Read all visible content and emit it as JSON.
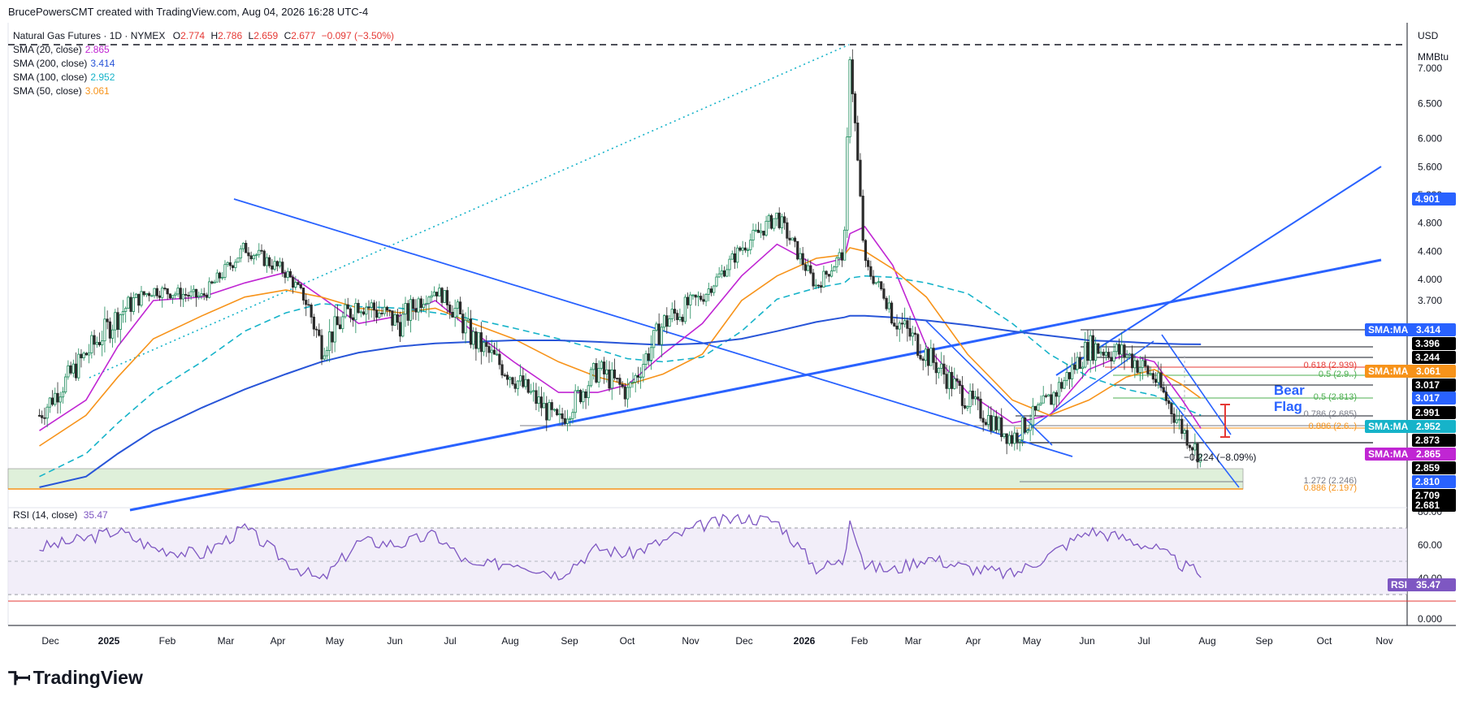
{
  "header": {
    "attribution": "BrucePowersCMT created with TradingView.com, Aug 04, 2026 16:28 UTC-4"
  },
  "symbol": {
    "name": "Natural Gas Futures · 1D · NYMEX",
    "open_label": "O",
    "open": "2.774",
    "high_label": "H",
    "high": "2.786",
    "low_label": "L",
    "low": "2.659",
    "close_label": "C",
    "close": "2.677",
    "change": "−0.097 (−3.50%)"
  },
  "indicators": [
    {
      "label": "SMA (20, close)",
      "value": "2.865",
      "color": "#c026d3"
    },
    {
      "label": "SMA (200, close)",
      "value": "3.414",
      "color": "#2855d8"
    },
    {
      "label": "SMA (100, close)",
      "value": "2.952",
      "color": "#16b3c9"
    },
    {
      "label": "SMA (50, close)",
      "value": "3.061",
      "color": "#f7931a"
    }
  ],
  "price_axis": {
    "currency": "USD",
    "unit": "MMBtu",
    "ticks": [
      "7.000",
      "6.500",
      "6.000",
      "5.600",
      "5.200",
      "4.800",
      "4.400",
      "4.000",
      "3.700"
    ]
  },
  "price_tags": [
    {
      "label": "4.901",
      "price": 4.901,
      "bg": "#2962ff"
    },
    {
      "label": "SMA:MA",
      "value": "3.414",
      "price": 3.414,
      "bg": "#2962ff"
    },
    {
      "label": "3.396",
      "price": 3.396,
      "bg": "#000000"
    },
    {
      "label": "3.244",
      "price": 3.244,
      "bg": "#000000"
    },
    {
      "label": "SMA:MA",
      "value": "3.061",
      "price": 3.15,
      "bg": "#f7931a"
    },
    {
      "label": "3.017",
      "price": 3.06,
      "bg": "#000000"
    },
    {
      "label": "3.017",
      "price": 2.985,
      "bg": "#2962ff"
    },
    {
      "label": "2.991",
      "price": 2.92,
      "bg": "#000000"
    },
    {
      "label": "SMA:MA",
      "value": "2.952",
      "price": 2.855,
      "bg": "#16b3c9"
    },
    {
      "label": "2.873",
      "price": 2.79,
      "bg": "#000000"
    },
    {
      "label": "SMA:MA",
      "value": "2.865",
      "price": 2.72,
      "bg": "#c026d3"
    },
    {
      "label": "2.859",
      "price": 2.65,
      "bg": "#000000"
    },
    {
      "label": "2.810",
      "price": 2.58,
      "bg": "#2962ff"
    },
    {
      "label": "2.709",
      "price": 2.51,
      "bg": "#000000"
    },
    {
      "label": "2.681",
      "price": 2.455,
      "bg": "#000000"
    }
  ],
  "fib_labels": [
    {
      "text": "0.618 (2.939)",
      "price": 3.16,
      "color": "#e53935"
    },
    {
      "text": "0.5 (2.9..)",
      "price": 3.09,
      "color": "#4caf50"
    },
    {
      "text": "0.5 (2.813)",
      "price": 2.985,
      "color": "#4caf50"
    },
    {
      "text": "0.786 (2.685)",
      "price": 2.92,
      "color": "#787b86"
    },
    {
      "text": "0.886 (2.6..)",
      "price": 2.865,
      "color": "#f7931a"
    },
    {
      "text": "1.272 (2.246)",
      "price": 2.58,
      "color": "#787b86"
    },
    {
      "text": "0.886 (2.197)",
      "price": 2.52,
      "color": "#f7931a"
    }
  ],
  "annotations": {
    "pattern_line1": "Bear",
    "pattern_line2": "Flag",
    "measured_move": "−0.224 (−8.09%)"
  },
  "rsi": {
    "label": "RSI (14, close)",
    "value": "35.47",
    "tag": "RSI",
    "axis_ticks": [
      "80.00",
      "60.00",
      "40.00",
      "0.000"
    ]
  },
  "time_axis": [
    "Dec",
    "2025",
    "Feb",
    "Mar",
    "Apr",
    "May",
    "Jun",
    "Jul",
    "Aug",
    "Sep",
    "Oct",
    "Nov",
    "Dec",
    "2026",
    "Feb",
    "Mar",
    "Apr",
    "May",
    "Jun",
    "Jul",
    "Aug",
    "Sep",
    "Oct",
    "Nov"
  ],
  "footer": {
    "brand": "TradingView"
  },
  "colors": {
    "candle_up": "#1b8a5a",
    "candle_down": "#2b2b2b",
    "sma20": "#c026d3",
    "sma50": "#f7931a",
    "sma100": "#16b3c9",
    "sma200": "#2855d8",
    "trendline": "#2962ff",
    "rsi": "#7e57c2"
  },
  "chart_data": {
    "type": "line",
    "title": "Natural Gas Futures · 1D · NYMEX",
    "ylabel": "USD / MMBtu",
    "ylim": [
      2.4,
      7.5
    ],
    "x": [
      "2024-11-20",
      "2024-12-15",
      "2025-01-01",
      "2025-01-20",
      "2025-02-15",
      "2025-03-10",
      "2025-04-01",
      "2025-04-20",
      "2025-05-10",
      "2025-06-01",
      "2025-06-20",
      "2025-07-10",
      "2025-08-01",
      "2025-08-25",
      "2025-09-15",
      "2025-10-01",
      "2025-10-20",
      "2025-11-10",
      "2025-12-01",
      "2025-12-20",
      "2026-01-10",
      "2026-01-25",
      "2026-01-28",
      "2026-02-05",
      "2026-02-20",
      "2026-03-10",
      "2026-04-01",
      "2026-04-25",
      "2026-05-15",
      "2026-06-05",
      "2026-06-25",
      "2026-07-10",
      "2026-07-25",
      "2026-08-04"
    ],
    "series": [
      {
        "name": "Natural Gas Futures",
        "values": [
          2.95,
          3.35,
          3.6,
          3.85,
          3.75,
          4.45,
          4.1,
          3.4,
          3.7,
          3.55,
          3.85,
          3.45,
          3.2,
          2.9,
          3.25,
          3.1,
          3.55,
          3.75,
          4.45,
          4.9,
          3.9,
          4.4,
          7.25,
          4.2,
          3.6,
          3.35,
          3.05,
          2.8,
          3.05,
          3.4,
          3.35,
          3.2,
          2.86,
          2.677
        ]
      },
      {
        "name": "SMA (20, close)",
        "values": [
          2.85,
          3.05,
          3.4,
          3.7,
          3.75,
          3.95,
          4.1,
          3.75,
          3.55,
          3.6,
          3.7,
          3.5,
          3.3,
          3.1,
          3.1,
          3.15,
          3.35,
          3.55,
          4.05,
          4.5,
          4.2,
          4.3,
          4.65,
          4.75,
          4.2,
          3.4,
          3.1,
          2.9,
          2.95,
          3.25,
          3.35,
          3.3,
          3.05,
          2.865
        ]
      },
      {
        "name": "SMA (50, close)",
        "values": [
          2.75,
          2.95,
          3.2,
          3.45,
          3.6,
          3.75,
          3.85,
          3.75,
          3.65,
          3.62,
          3.65,
          3.55,
          3.45,
          3.3,
          3.2,
          3.15,
          3.22,
          3.35,
          3.7,
          4.05,
          4.3,
          4.35,
          4.45,
          4.4,
          4.15,
          3.75,
          3.35,
          3.05,
          2.95,
          3.05,
          3.2,
          3.25,
          3.15,
          3.061
        ]
      },
      {
        "name": "SMA (100, close)",
        "values": [
          2.55,
          2.7,
          2.9,
          3.1,
          3.3,
          3.5,
          3.62,
          3.68,
          3.66,
          3.65,
          3.62,
          3.58,
          3.52,
          3.45,
          3.38,
          3.32,
          3.3,
          3.33,
          3.5,
          3.72,
          3.88,
          3.95,
          4.02,
          4.05,
          4.03,
          3.95,
          3.8,
          3.55,
          3.35,
          3.2,
          3.12,
          3.08,
          3.0,
          2.952
        ]
      },
      {
        "name": "SMA (200, close)",
        "values": [
          2.48,
          2.55,
          2.7,
          2.85,
          3.0,
          3.12,
          3.22,
          3.3,
          3.36,
          3.4,
          3.42,
          3.43,
          3.44,
          3.44,
          3.43,
          3.42,
          3.41,
          3.42,
          3.45,
          3.5,
          3.56,
          3.59,
          3.6,
          3.6,
          3.59,
          3.57,
          3.54,
          3.5,
          3.47,
          3.44,
          3.43,
          3.42,
          3.415,
          3.414
        ]
      },
      {
        "name": "RSI (14, close)",
        "values": [
          55,
          62,
          68,
          55,
          50,
          70,
          45,
          30,
          60,
          58,
          65,
          40,
          45,
          35,
          55,
          50,
          60,
          72,
          78,
          75,
          40,
          45,
          80,
          42,
          38,
          48,
          40,
          35,
          50,
          68,
          62,
          55,
          42,
          35.47
        ]
      }
    ]
  }
}
